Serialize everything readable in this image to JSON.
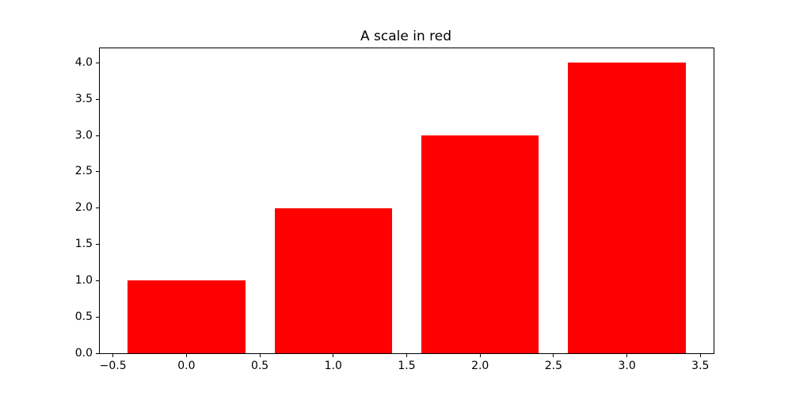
{
  "chart_data": {
    "type": "bar",
    "title": "A scale in red",
    "x": [
      0,
      1,
      2,
      3
    ],
    "values": [
      1,
      2,
      3,
      4
    ],
    "bar_width": 0.8,
    "bar_color": "#ff0000",
    "xlim": [
      -0.59,
      3.59
    ],
    "ylim": [
      0,
      4.2
    ],
    "x_ticks": [
      -0.5,
      0.0,
      0.5,
      1.0,
      1.5,
      2.0,
      2.5,
      3.0,
      3.5
    ],
    "x_tick_labels": [
      "−0.5",
      "0.0",
      "0.5",
      "1.0",
      "1.5",
      "2.0",
      "2.5",
      "3.0",
      "3.5"
    ],
    "y_ticks": [
      0.0,
      0.5,
      1.0,
      1.5,
      2.0,
      2.5,
      3.0,
      3.5,
      4.0
    ],
    "y_tick_labels": [
      "0.0",
      "0.5",
      "1.0",
      "1.5",
      "2.0",
      "2.5",
      "3.0",
      "3.5",
      "4.0"
    ],
    "xlabel": "",
    "ylabel": "",
    "grid": false,
    "legend": null,
    "background_color": "#ffffff",
    "spine_color": "#000000"
  }
}
